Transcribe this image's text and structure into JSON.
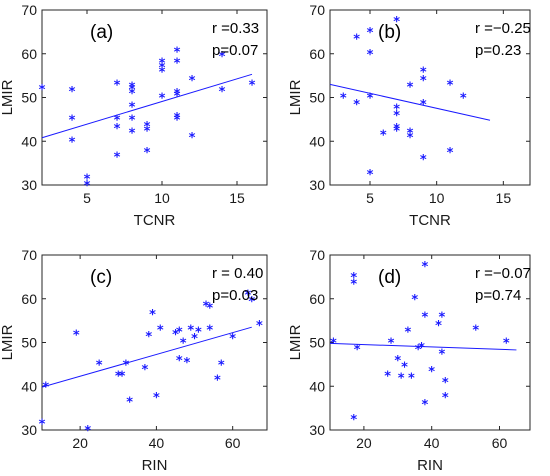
{
  "colors": {
    "marker": "#1a1aff",
    "line": "#1a1aff",
    "axis": "#262626"
  },
  "chart_data": [
    {
      "type": "scatter",
      "panel": "(a)",
      "annotation": [
        "r =0.33",
        "p=0.07"
      ],
      "xlabel": "TCNR",
      "ylabel": "LMIR",
      "xlim": [
        2,
        17
      ],
      "ylim": [
        30,
        70
      ],
      "xticks": [
        5,
        10,
        15
      ],
      "yticks": [
        30,
        40,
        50,
        60,
        70
      ],
      "points": [
        [
          2,
          52
        ],
        [
          4,
          51.5
        ],
        [
          4,
          45
        ],
        [
          4,
          40
        ],
        [
          5,
          31.5
        ],
        [
          5,
          30
        ],
        [
          7,
          53
        ],
        [
          7,
          45
        ],
        [
          7,
          43
        ],
        [
          7,
          36.5
        ],
        [
          8,
          52.5
        ],
        [
          8,
          52
        ],
        [
          8,
          51
        ],
        [
          8,
          48
        ],
        [
          8,
          45
        ],
        [
          8,
          42
        ],
        [
          9,
          43.5
        ],
        [
          9,
          42.5
        ],
        [
          9,
          37.5
        ],
        [
          10,
          58
        ],
        [
          10,
          57
        ],
        [
          10,
          56
        ],
        [
          10,
          50
        ],
        [
          11,
          60.5
        ],
        [
          11,
          58
        ],
        [
          11,
          51
        ],
        [
          11,
          50.5
        ],
        [
          11,
          45.5
        ],
        [
          11,
          45
        ],
        [
          12,
          54
        ],
        [
          12,
          41
        ],
        [
          14,
          59.5
        ],
        [
          14,
          51.5
        ],
        [
          16,
          53
        ]
      ],
      "fit": [
        [
          2,
          40.8
        ],
        [
          16,
          55.3
        ]
      ]
    },
    {
      "type": "scatter",
      "panel": "(b)",
      "annotation": [
        "r =−0.25",
        "p=0.23"
      ],
      "xlabel": "TCNR",
      "ylabel": "LMIR",
      "xlim": [
        2,
        17
      ],
      "ylim": [
        30,
        70
      ],
      "xticks": [
        5,
        10,
        15
      ],
      "yticks": [
        30,
        40,
        50,
        60,
        70
      ],
      "points": [
        [
          3,
          50
        ],
        [
          4,
          63.5
        ],
        [
          4,
          48.5
        ],
        [
          5,
          65
        ],
        [
          5,
          60
        ],
        [
          5,
          50
        ],
        [
          5,
          32.5
        ],
        [
          6,
          41.5
        ],
        [
          7,
          67.5
        ],
        [
          7,
          47.5
        ],
        [
          7,
          46
        ],
        [
          7,
          43
        ],
        [
          7,
          42.5
        ],
        [
          8,
          52.5
        ],
        [
          8,
          42
        ],
        [
          8,
          41
        ],
        [
          9,
          56
        ],
        [
          9,
          54
        ],
        [
          9,
          48.5
        ],
        [
          9,
          36
        ],
        [
          11,
          53
        ],
        [
          11,
          37.5
        ],
        [
          12,
          50
        ]
      ],
      "fit": [
        [
          2,
          53
        ],
        [
          14,
          44.8
        ]
      ]
    },
    {
      "type": "scatter",
      "panel": "(c)",
      "annotation": [
        "r = 0.40",
        "p=0.03"
      ],
      "xlabel": "RIN",
      "ylabel": "LMIR",
      "xlim": [
        10,
        69
      ],
      "ylim": [
        30,
        70
      ],
      "xticks": [
        20,
        40,
        60
      ],
      "yticks": [
        30,
        40,
        50,
        60,
        70
      ],
      "points": [
        [
          10,
          31.5
        ],
        [
          11,
          40
        ],
        [
          19,
          51.8
        ],
        [
          22,
          30
        ],
        [
          25,
          45
        ],
        [
          30,
          42.5
        ],
        [
          31,
          42.5
        ],
        [
          32,
          45
        ],
        [
          33,
          36.5
        ],
        [
          37,
          44
        ],
        [
          38,
          51.5
        ],
        [
          39,
          56.5
        ],
        [
          40,
          37.5
        ],
        [
          41,
          53
        ],
        [
          45,
          52
        ],
        [
          46,
          46
        ],
        [
          46,
          52.5
        ],
        [
          47,
          50
        ],
        [
          48,
          45.5
        ],
        [
          49,
          53
        ],
        [
          50,
          51
        ],
        [
          51,
          52.5
        ],
        [
          53,
          58.5
        ],
        [
          54,
          58
        ],
        [
          54,
          53
        ],
        [
          56,
          41.5
        ],
        [
          57,
          45
        ],
        [
          60,
          51
        ],
        [
          64,
          61
        ],
        [
          65,
          59.5
        ],
        [
          67,
          54
        ]
      ],
      "fit": [
        [
          10,
          39.8
        ],
        [
          65,
          53.5
        ]
      ]
    },
    {
      "type": "scatter",
      "panel": "(d)",
      "annotation": [
        "r =−0.07",
        "p=0.74"
      ],
      "xlabel": "RIN",
      "ylabel": "LMIR",
      "xlim": [
        10,
        69
      ],
      "ylim": [
        30,
        70
      ],
      "xticks": [
        20,
        40,
        60
      ],
      "yticks": [
        30,
        40,
        50,
        60,
        70
      ],
      "points": [
        [
          11,
          50
        ],
        [
          17,
          65
        ],
        [
          17,
          63.5
        ],
        [
          18,
          48.5
        ],
        [
          17,
          32.5
        ],
        [
          27,
          42.5
        ],
        [
          28,
          50
        ],
        [
          30,
          46
        ],
        [
          31,
          42
        ],
        [
          32,
          44.5
        ],
        [
          33,
          52.5
        ],
        [
          34,
          42
        ],
        [
          35,
          60
        ],
        [
          36,
          48.5
        ],
        [
          37,
          49
        ],
        [
          38,
          67.5
        ],
        [
          38,
          56
        ],
        [
          38,
          36
        ],
        [
          40,
          43.5
        ],
        [
          42,
          54
        ],
        [
          43,
          47.5
        ],
        [
          43,
          56
        ],
        [
          44,
          41
        ],
        [
          44,
          37.5
        ],
        [
          53,
          53
        ],
        [
          62,
          50
        ]
      ],
      "fit": [
        [
          10,
          49.8
        ],
        [
          65,
          48.3
        ]
      ]
    }
  ]
}
